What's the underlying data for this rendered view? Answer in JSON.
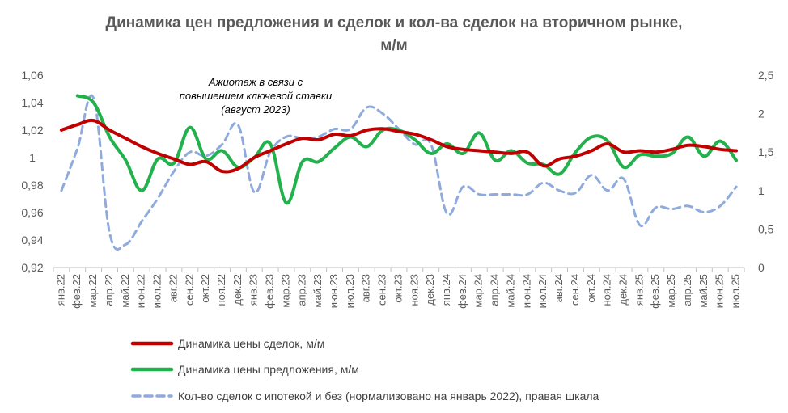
{
  "chart_data": {
    "type": "line",
    "title_line1": "Динамика цен предложения и сделок и кол-ва сделок на вторичном рынке,",
    "title_line2": "м/м",
    "annotation": [
      "Ажиотаж в связи с",
      "повышением ключевой ставки",
      "(август 2023)"
    ],
    "categories": [
      "янв.22",
      "фев.22",
      "мар.22",
      "апр.22",
      "май.22",
      "июн.22",
      "июл.22",
      "авг.22",
      "сен.22",
      "окт.22",
      "ноя.22",
      "дек.22",
      "янв.23",
      "фев.23",
      "мар.23",
      "апр.23",
      "май.23",
      "июн.23",
      "июл.23",
      "авг.23",
      "сен.23",
      "окт.23",
      "ноя.23",
      "дек.23",
      "янв.24",
      "фев.24",
      "мар.24",
      "апр.24",
      "май.24",
      "июн.24",
      "июл.24",
      "авг.24",
      "сен.24",
      "окт.24",
      "ноя.24",
      "дек.24",
      "янв.25",
      "фев.25",
      "мар.25",
      "апр.25",
      "май.25",
      "июн.25",
      "июл.25"
    ],
    "y_left": {
      "ticks": [
        "0,92",
        "0,94",
        "0,96",
        "0,98",
        "1",
        "1,02",
        "1,04",
        "1,06"
      ],
      "min": 0.92,
      "max": 1.06
    },
    "y_right": {
      "ticks": [
        "0",
        "0,5",
        "1",
        "1,5",
        "2",
        "2,5"
      ],
      "min": 0,
      "max": 2.5
    },
    "series": [
      {
        "name": "Динамика цены сделок, м/м",
        "axis": "left",
        "color": "#C00000",
        "style": "solid",
        "values": [
          1.02,
          1.024,
          1.027,
          1.02,
          1.014,
          1.008,
          1.003,
          0.999,
          0.995,
          0.997,
          0.99,
          0.992,
          1.0,
          1.005,
          1.01,
          1.014,
          1.013,
          1.017,
          1.016,
          1.02,
          1.021,
          1.019,
          1.017,
          1.013,
          1.008,
          1.006,
          1.005,
          1.004,
          1.003,
          1.004,
          0.994,
          0.999,
          1.001,
          1.005,
          1.01,
          1.004,
          1.005,
          1.004,
          1.006,
          1.009,
          1.008,
          1.006,
          1.005
        ]
      },
      {
        "name": "Динамика цены предложения, м/м",
        "axis": "left",
        "color": "#22B14C",
        "style": "solid",
        "values": [
          null,
          1.045,
          1.04,
          1.015,
          0.998,
          0.976,
          0.999,
          0.996,
          1.022,
          0.999,
          1.005,
          0.993,
          1.0,
          1.01,
          0.967,
          0.997,
          0.997,
          1.007,
          1.015,
          1.008,
          1.02,
          1.02,
          1.013,
          1.003,
          1.01,
          1.003,
          1.018,
          0.998,
          1.005,
          0.996,
          0.995,
          0.988,
          1.004,
          1.015,
          1.012,
          0.993,
          1.002,
          1.001,
          1.003,
          1.015,
          1.001,
          1.012,
          0.998
        ]
      },
      {
        "name": "Кол-во сделок с ипотекой и без (нормализовано на январь 2022),  правая шкала",
        "axis": "right",
        "color": "#8FAADC",
        "style": "dashed",
        "values": [
          1.0,
          1.55,
          2.2,
          0.45,
          0.3,
          0.6,
          0.9,
          1.25,
          1.5,
          1.45,
          1.6,
          1.85,
          0.98,
          1.5,
          1.7,
          1.68,
          1.7,
          1.8,
          1.8,
          2.08,
          2.0,
          1.8,
          1.6,
          1.6,
          0.7,
          1.05,
          0.95,
          0.95,
          0.95,
          0.95,
          1.1,
          1.0,
          0.97,
          1.2,
          1.0,
          1.15,
          0.55,
          0.78,
          0.76,
          0.8,
          0.72,
          0.8,
          1.05
        ]
      }
    ],
    "legend_position": "bottom"
  }
}
